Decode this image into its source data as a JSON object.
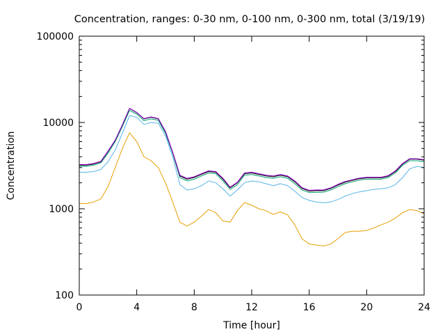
{
  "chart_data": {
    "type": "line",
    "title": "Concentration, ranges: 0-30 nm, 0-100 nm, 0-300 nm, total (3/19/19)",
    "xlabel": "Time [hour]",
    "ylabel": "Concentration",
    "xlim": [
      0,
      24
    ],
    "ylim": [
      100,
      100000
    ],
    "yscale": "log",
    "grid": false,
    "legend": "none",
    "x_ticks": [
      0,
      4,
      8,
      12,
      16,
      20,
      24
    ],
    "x_tick_labels": [
      "0",
      "4",
      "8",
      "12",
      "16",
      "20",
      "24"
    ],
    "y_ticks": [
      100,
      1000,
      10000,
      100000
    ],
    "y_tick_labels": [
      "100",
      "1000",
      "10000",
      "100000"
    ],
    "x": [
      0,
      0.5,
      1,
      1.5,
      2,
      2.5,
      3,
      3.5,
      4,
      4.5,
      5,
      5.5,
      6,
      6.5,
      7,
      7.5,
      8,
      8.5,
      9,
      9.5,
      10,
      10.5,
      11,
      11.5,
      12,
      12.5,
      13,
      13.5,
      14,
      14.5,
      15,
      15.5,
      16,
      16.5,
      17,
      17.5,
      18,
      18.5,
      19,
      19.5,
      20,
      20.5,
      21,
      21.5,
      22,
      22.5,
      23,
      23.5,
      24
    ],
    "series": [
      {
        "color": "#e69f00",
        "values": [
          1150,
          1150,
          1200,
          1300,
          1800,
          3000,
          5000,
          7600,
          6000,
          4000,
          3600,
          3000,
          2000,
          1200,
          700,
          630,
          700,
          820,
          980,
          900,
          720,
          700,
          950,
          1180,
          1100,
          1000,
          950,
          860,
          920,
          850,
          650,
          450,
          390,
          380,
          370,
          390,
          450,
          530,
          550,
          550,
          560,
          600,
          650,
          700,
          780,
          900,
          980,
          950,
          880
        ]
      },
      {
        "color": "#56b4e9",
        "values": [
          2650,
          2650,
          2700,
          2850,
          3500,
          4800,
          7500,
          12000,
          11500,
          9500,
          10000,
          9800,
          7000,
          4000,
          1900,
          1650,
          1700,
          1850,
          2100,
          2000,
          1700,
          1400,
          1650,
          2000,
          2100,
          2050,
          1950,
          1850,
          1950,
          1850,
          1600,
          1350,
          1250,
          1200,
          1170,
          1200,
          1280,
          1400,
          1500,
          1570,
          1620,
          1680,
          1700,
          1750,
          1900,
          2300,
          2900,
          3100,
          3000
        ]
      },
      {
        "color": "#009e73",
        "values": [
          3100,
          3100,
          3200,
          3400,
          4400,
          6000,
          9000,
          13800,
          12500,
          10500,
          11000,
          10600,
          7500,
          4400,
          2300,
          2100,
          2200,
          2400,
          2600,
          2550,
          2100,
          1680,
          1900,
          2450,
          2500,
          2400,
          2300,
          2250,
          2350,
          2250,
          1950,
          1650,
          1540,
          1550,
          1560,
          1650,
          1800,
          1950,
          2050,
          2150,
          2200,
          2200,
          2200,
          2300,
          2600,
          3200,
          3600,
          3600,
          3500
        ]
      },
      {
        "color": "#000000",
        "values": [
          3200,
          3200,
          3300,
          3500,
          4600,
          6200,
          9300,
          14500,
          13000,
          11000,
          11500,
          11000,
          7800,
          4500,
          2400,
          2200,
          2300,
          2500,
          2700,
          2650,
          2200,
          1750,
          2000,
          2550,
          2600,
          2500,
          2400,
          2350,
          2450,
          2350,
          2050,
          1720,
          1600,
          1620,
          1620,
          1720,
          1880,
          2030,
          2130,
          2230,
          2280,
          2280,
          2280,
          2380,
          2700,
          3300,
          3750,
          3750,
          3650
        ]
      },
      {
        "color": "#9400d3",
        "values": [
          3250,
          3250,
          3350,
          3550,
          4650,
          6250,
          9400,
          14600,
          13100,
          11100,
          11600,
          11100,
          7900,
          4550,
          2450,
          2250,
          2350,
          2550,
          2750,
          2700,
          2250,
          1780,
          2030,
          2600,
          2650,
          2550,
          2450,
          2400,
          2500,
          2400,
          2100,
          1760,
          1640,
          1650,
          1650,
          1750,
          1920,
          2070,
          2170,
          2270,
          2320,
          2320,
          2320,
          2420,
          2750,
          3350,
          3800,
          3800,
          3700
        ]
      }
    ]
  }
}
